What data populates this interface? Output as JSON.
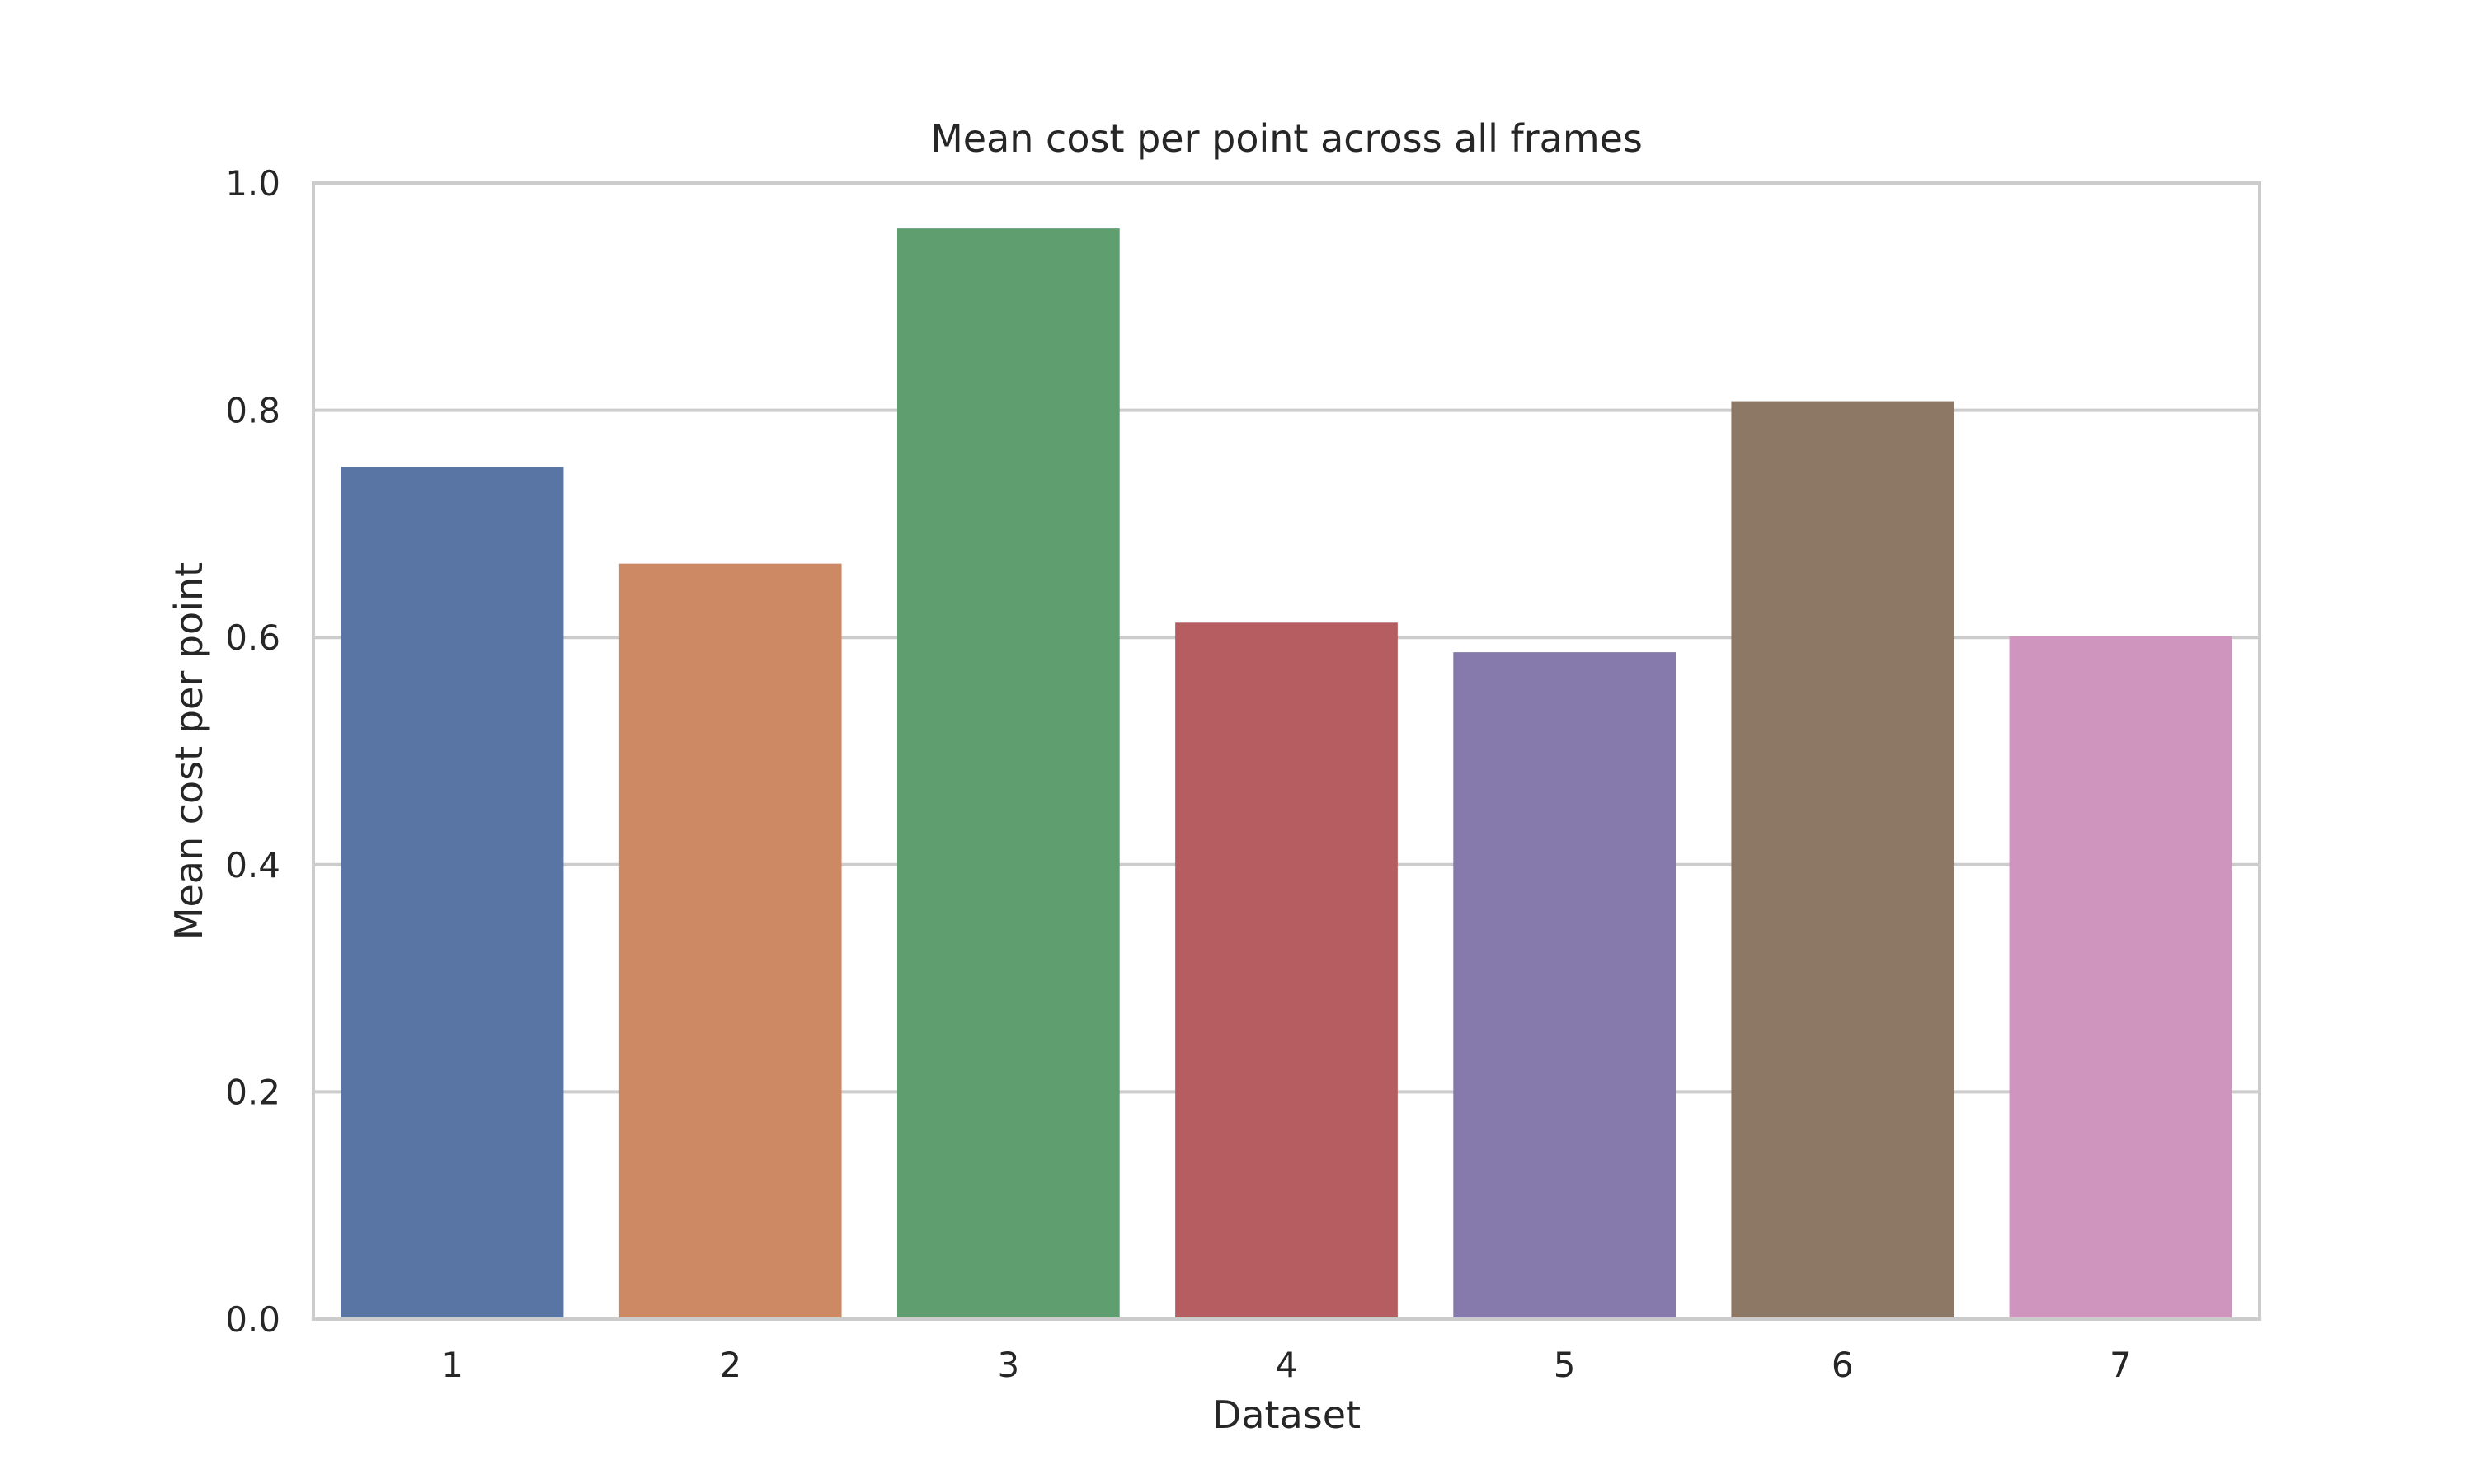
{
  "chart_data": {
    "type": "bar",
    "title": "Mean cost per point across all frames",
    "xlabel": "Dataset",
    "ylabel": "Mean cost per point",
    "categories": [
      "1",
      "2",
      "3",
      "4",
      "5",
      "6",
      "7"
    ],
    "values": [
      0.75,
      0.665,
      0.96,
      0.613,
      0.587,
      0.808,
      0.601
    ],
    "colors": [
      "#5975a4",
      "#cc8963",
      "#5f9e6e",
      "#b55d60",
      "#857aab",
      "#8d7866",
      "#d095bf"
    ],
    "ylim": [
      0,
      1.0
    ],
    "yticks": [
      0.0,
      0.2,
      0.4,
      0.6,
      0.8,
      1.0
    ],
    "ytick_labels": [
      "0.0",
      "0.2",
      "0.4",
      "0.6",
      "0.8",
      "1.0"
    ],
    "grid": "horizontal",
    "background": "#ffffff",
    "grid_color": "#cccccc",
    "spine_color": "#cccccc"
  }
}
